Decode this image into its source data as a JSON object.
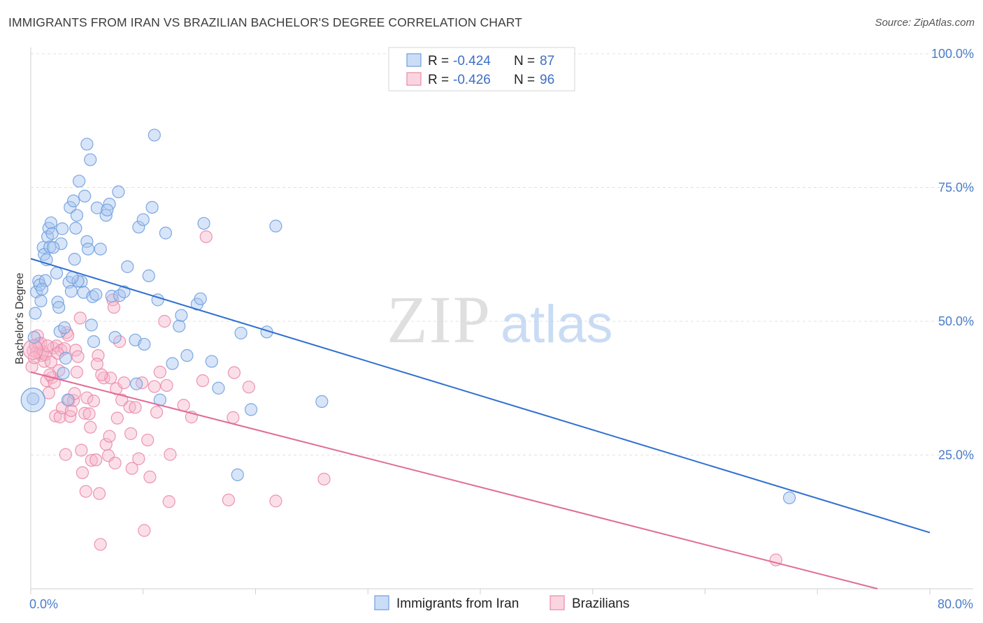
{
  "title": "IMMIGRANTS FROM IRAN VS BRAZILIAN BACHELOR'S DEGREE CORRELATION CHART",
  "source": "Source: ZipAtlas.com",
  "watermark": {
    "zip": "ZIP",
    "atlas": "atlas"
  },
  "colors": {
    "blue_fill": "#a8c6f0",
    "blue_stroke": "#6f9ee0",
    "blue_line": "#2f6fd0",
    "pink_fill": "#f6b9cc",
    "pink_stroke": "#ea8aa8",
    "pink_line": "#e06c96",
    "grid": "#e0e0e0",
    "tick_text": "#4a7cc9"
  },
  "legend": {
    "rows": [
      {
        "r_label": "R = ",
        "r_value": "-0.424",
        "n_label": "N = ",
        "n_value": "87"
      },
      {
        "r_label": "R = ",
        "r_value": "-0.426",
        "n_label": "N = ",
        "n_value": "96"
      }
    ]
  },
  "chart_data": {
    "type": "scatter",
    "xlabel": "",
    "ylabel": "Bachelor's Degree",
    "xlim": [
      0,
      80
    ],
    "ylim": [
      0,
      100
    ],
    "x_tick_labels": [
      "0.0%",
      "80.0%"
    ],
    "y_tick_labels": [
      "100.0%",
      "75.0%",
      "50.0%",
      "25.0%"
    ],
    "y_tick_values": [
      100,
      75,
      50,
      25
    ],
    "series": [
      {
        "name": "Immigrants from Iran",
        "trend": {
          "x": [
            0,
            80
          ],
          "y": [
            61.7,
            10.5
          ]
        },
        "points": [
          [
            0.2,
            35.5
          ],
          [
            0.3,
            47
          ],
          [
            0.4,
            51.5
          ],
          [
            0.5,
            55.5
          ],
          [
            0.7,
            57.5
          ],
          [
            0.8,
            56.8
          ],
          [
            0.9,
            53.8
          ],
          [
            1.1,
            63.8
          ],
          [
            1.2,
            62.5
          ],
          [
            1.3,
            57.6
          ],
          [
            1.4,
            61.5
          ],
          [
            1.5,
            65.8
          ],
          [
            1.6,
            67.4
          ],
          [
            1.7,
            63.9
          ],
          [
            1.8,
            68.4
          ],
          [
            1.9,
            66.4
          ],
          [
            2.3,
            59.0
          ],
          [
            2.4,
            53.6
          ],
          [
            2.5,
            52.6
          ],
          [
            2.6,
            48.1
          ],
          [
            2.7,
            64.5
          ],
          [
            2.8,
            67.3
          ],
          [
            2.9,
            40.3
          ],
          [
            3.0,
            48.8
          ],
          [
            3.1,
            43.1
          ],
          [
            3.3,
            35.3
          ],
          [
            3.4,
            57.3
          ],
          [
            3.5,
            71.3
          ],
          [
            3.6,
            55.6
          ],
          [
            3.8,
            72.5
          ],
          [
            3.9,
            61.6
          ],
          [
            4.0,
            67.4
          ],
          [
            4.1,
            69.8
          ],
          [
            4.3,
            76.2
          ],
          [
            4.5,
            57.4
          ],
          [
            4.7,
            55.4
          ],
          [
            4.8,
            73.4
          ],
          [
            5.0,
            64.9
          ],
          [
            5.0,
            83.1
          ],
          [
            5.1,
            63.5
          ],
          [
            5.3,
            80.2
          ],
          [
            5.4,
            49.3
          ],
          [
            5.5,
            54.6
          ],
          [
            5.6,
            46.2
          ],
          [
            5.9,
            71.2
          ],
          [
            6.2,
            63.5
          ],
          [
            6.7,
            69.8
          ],
          [
            7.0,
            71.9
          ],
          [
            7.2,
            54.7
          ],
          [
            7.5,
            47.0
          ],
          [
            7.8,
            74.2
          ],
          [
            7.9,
            54.8
          ],
          [
            8.3,
            55.5
          ],
          [
            8.6,
            60.2
          ],
          [
            9.3,
            46.5
          ],
          [
            9.4,
            38.3
          ],
          [
            9.6,
            67.6
          ],
          [
            10.0,
            69.0
          ],
          [
            10.1,
            45.7
          ],
          [
            10.5,
            58.5
          ],
          [
            10.8,
            71.3
          ],
          [
            11.0,
            84.8
          ],
          [
            11.3,
            54.0
          ],
          [
            11.5,
            35.3
          ],
          [
            12.0,
            66.5
          ],
          [
            12.6,
            42.1
          ],
          [
            13.2,
            49.1
          ],
          [
            13.4,
            51.1
          ],
          [
            13.9,
            43.6
          ],
          [
            14.8,
            53.2
          ],
          [
            15.1,
            54.2
          ],
          [
            15.4,
            68.3
          ],
          [
            16.1,
            42.5
          ],
          [
            16.7,
            37.5
          ],
          [
            18.4,
            21.3
          ],
          [
            18.7,
            47.8
          ],
          [
            19.6,
            33.5
          ],
          [
            21.0,
            48.0
          ],
          [
            21.8,
            67.8
          ],
          [
            25.9,
            35.0
          ],
          [
            67.5,
            17.0
          ],
          [
            2.0,
            63.8
          ],
          [
            6.8,
            70.8
          ],
          [
            1.0,
            56.0
          ],
          [
            4.2,
            57.5
          ],
          [
            3.7,
            58.2
          ],
          [
            5.8,
            55.0
          ]
        ]
      },
      {
        "name": "Brazilians",
        "trend": {
          "x": [
            0,
            80
          ],
          "y": [
            40.5,
            -2.5
          ]
        },
        "points": [
          [
            0.1,
            41.5
          ],
          [
            0.2,
            44.5
          ],
          [
            0.4,
            45.5
          ],
          [
            0.5,
            44.2
          ],
          [
            0.6,
            47.3
          ],
          [
            0.7,
            45.8
          ],
          [
            0.8,
            44.0
          ],
          [
            1.0,
            43.6
          ],
          [
            1.1,
            44.3
          ],
          [
            1.2,
            42.5
          ],
          [
            1.3,
            43.8
          ],
          [
            1.4,
            38.9
          ],
          [
            1.6,
            36.6
          ],
          [
            1.8,
            42.4
          ],
          [
            1.9,
            39.5
          ],
          [
            2.0,
            45.0
          ],
          [
            2.1,
            38.5
          ],
          [
            2.2,
            32.3
          ],
          [
            2.3,
            45.4
          ],
          [
            2.5,
            40.8
          ],
          [
            2.6,
            32.1
          ],
          [
            2.7,
            44.6
          ],
          [
            2.8,
            33.8
          ],
          [
            3.0,
            44.9
          ],
          [
            3.1,
            25.1
          ],
          [
            3.2,
            47.9
          ],
          [
            3.4,
            35.2
          ],
          [
            3.5,
            32.2
          ],
          [
            3.6,
            33.3
          ],
          [
            3.8,
            35.2
          ],
          [
            4.0,
            44.6
          ],
          [
            4.2,
            43.4
          ],
          [
            4.4,
            50.6
          ],
          [
            4.5,
            25.9
          ],
          [
            4.6,
            21.7
          ],
          [
            4.8,
            32.8
          ],
          [
            4.9,
            18.2
          ],
          [
            5.0,
            35.7
          ],
          [
            5.2,
            32.7
          ],
          [
            5.4,
            24.0
          ],
          [
            5.6,
            35.1
          ],
          [
            5.8,
            24.1
          ],
          [
            6.0,
            43.6
          ],
          [
            6.1,
            17.8
          ],
          [
            6.2,
            8.3
          ],
          [
            6.5,
            39.4
          ],
          [
            6.7,
            27.0
          ],
          [
            6.9,
            24.9
          ],
          [
            7.1,
            39.4
          ],
          [
            7.3,
            54.0
          ],
          [
            7.4,
            52.6
          ],
          [
            7.5,
            23.5
          ],
          [
            7.6,
            37.4
          ],
          [
            7.7,
            31.9
          ],
          [
            7.9,
            46.2
          ],
          [
            8.3,
            38.5
          ],
          [
            8.8,
            34.0
          ],
          [
            8.9,
            29.0
          ],
          [
            9.3,
            33.9
          ],
          [
            9.6,
            24.3
          ],
          [
            9.9,
            38.5
          ],
          [
            10.1,
            10.9
          ],
          [
            10.4,
            27.8
          ],
          [
            10.6,
            20.9
          ],
          [
            11.0,
            37.8
          ],
          [
            11.5,
            40.5
          ],
          [
            11.9,
            50.0
          ],
          [
            12.1,
            38.0
          ],
          [
            12.3,
            16.3
          ],
          [
            12.4,
            25.1
          ],
          [
            13.6,
            34.3
          ],
          [
            14.3,
            32.1
          ],
          [
            15.3,
            38.9
          ],
          [
            15.6,
            65.8
          ],
          [
            17.6,
            16.6
          ],
          [
            18.0,
            32.0
          ],
          [
            18.1,
            40.4
          ],
          [
            19.4,
            37.7
          ],
          [
            21.8,
            16.4
          ],
          [
            26.1,
            20.5
          ],
          [
            66.3,
            5.4
          ],
          [
            0.9,
            45.9
          ],
          [
            1.5,
            45.4
          ],
          [
            3.3,
            47.4
          ],
          [
            2.4,
            44.0
          ],
          [
            4.1,
            40.5
          ],
          [
            6.3,
            40.0
          ],
          [
            8.1,
            35.3
          ],
          [
            5.3,
            30.2
          ],
          [
            7.0,
            28.5
          ],
          [
            9.0,
            22.5
          ],
          [
            11.2,
            33.0
          ],
          [
            1.7,
            40.0
          ],
          [
            3.9,
            36.5
          ],
          [
            5.9,
            42.0
          ],
          [
            0.3,
            43.2
          ]
        ]
      }
    ]
  },
  "bottom_legend": [
    "Immigrants from Iran",
    "Brazilians"
  ]
}
